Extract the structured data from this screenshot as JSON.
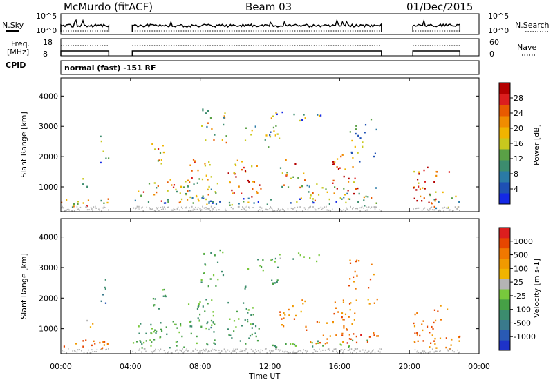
{
  "header": {
    "station": "McMurdo (fitACF)",
    "beam": "Beam 03",
    "date": "01/Dec/2015"
  },
  "top_panels": {
    "nsky_label": "N.Sky",
    "nsearch_label": "N.Search",
    "nsky_ticks": [
      "10^5",
      "10^0"
    ],
    "nsearch_ticks": [
      "10^5",
      "10^0"
    ],
    "freq_label": "Freq.",
    "freq_unit": "[MHz]",
    "freq_ticks": [
      "18",
      "8"
    ],
    "nave_label": "Nave",
    "nave_ticks": [
      "60",
      "0"
    ],
    "cpid_label": "CPID",
    "cpid_text": "normal (fast) -151 RF"
  },
  "chart_data": [
    {
      "type": "heatmap",
      "panel": "power",
      "ylabel": "Slant Range [km]",
      "yticks": [
        1000,
        2000,
        3000,
        4000
      ],
      "ylim": [
        180,
        4600
      ],
      "xlim_hours": [
        0,
        24
      ],
      "colorbar_label": "Power [dB]",
      "colorbar_ticks": [
        4,
        8,
        12,
        16,
        20,
        24,
        28
      ],
      "colorbar_colors": [
        "#1428e6",
        "#1e50b4",
        "#2a7aa6",
        "#3c8c6e",
        "#5aa046",
        "#c8c81e",
        "#f0b400",
        "#f08c00",
        "#e85a00",
        "#dc1e1e",
        "#b40000"
      ]
    },
    {
      "type": "heatmap",
      "panel": "velocity",
      "ylabel": "Slant Range [km]",
      "yticks": [
        1000,
        2000,
        3000,
        4000
      ],
      "ylim": [
        180,
        4600
      ],
      "xlim_hours": [
        0,
        24
      ],
      "colorbar_label": "Velocity [m s-1]",
      "colorbar_ticks": [
        "1000",
        "500",
        "100",
        "25",
        "-25",
        "-100",
        "-500",
        "-1000"
      ],
      "colorbar_colors": [
        "#1e32c8",
        "#2a5ab4",
        "#3a7a8c",
        "#3c8c6e",
        "#46a046",
        "#78c83c",
        "#b4b4b4",
        "#f0b400",
        "#f09a00",
        "#f07800",
        "#e64600",
        "#dc1e1e"
      ]
    }
  ],
  "x_axis": {
    "ticks": [
      "00:00",
      "04:00",
      "08:00",
      "12:00",
      "16:00",
      "20:00",
      "00:00"
    ],
    "label": "Time UT"
  },
  "colors": {
    "ground_scatter": "#b4b4b4"
  }
}
